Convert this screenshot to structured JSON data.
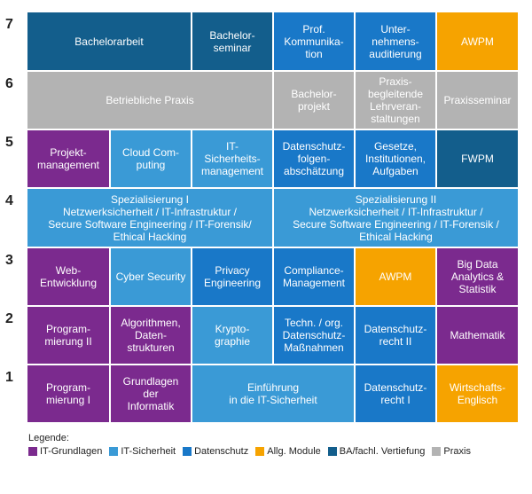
{
  "semesters": [
    "7",
    "6",
    "5",
    "4",
    "3",
    "2",
    "1"
  ],
  "colors": {
    "it": "#7b2a8e",
    "sec": "#3a9ad6",
    "ds": "#1978c8",
    "allg": "#f6a300",
    "ba": "#135e8c",
    "prax": "#b3b3b3"
  },
  "modules": [
    {
      "id": "bachelorarbeit",
      "text": "Bachelorarbeit",
      "cat": "ba"
    },
    {
      "id": "bachelorseminar",
      "text": "Bachelor-\nseminar",
      "cat": "ba"
    },
    {
      "id": "prof-kommunikation",
      "text": "Prof.\nKommunika-\ntion",
      "cat": "ds"
    },
    {
      "id": "unternehmensauditierung",
      "text": "Unter-\nnehmens-\nauditierung",
      "cat": "ds"
    },
    {
      "id": "awpm-7",
      "text": "AWPM",
      "cat": "allg"
    },
    {
      "id": "betriebliche-praxis",
      "text": "Betriebliche Praxis",
      "cat": "prax"
    },
    {
      "id": "bachelorprojekt",
      "text": "Bachelor-\nprojekt",
      "cat": "prax"
    },
    {
      "id": "praxisbegleitende-lehrveranstaltungen",
      "text": "Praxis-\nbegleitende\nLehrveran-\nstaltungen",
      "cat": "prax"
    },
    {
      "id": "praxisseminar",
      "text": "Praxisseminar",
      "cat": "prax"
    },
    {
      "id": "projektmanagement",
      "text": "Projekt-\nmanagement",
      "cat": "it"
    },
    {
      "id": "cloud-computing",
      "text": "Cloud Com-\nputing",
      "cat": "sec"
    },
    {
      "id": "it-sicherheitsmanagement",
      "text": "IT-\nSicherheits-\nmanagement",
      "cat": "sec"
    },
    {
      "id": "datenschutzfolgenabschaetzung",
      "text": "Datenschutz-\nfolgen-\nabschätzung",
      "cat": "ds"
    },
    {
      "id": "gesetze",
      "text": "Gesetze,\nInstitutionen,\nAufgaben",
      "cat": "ds"
    },
    {
      "id": "fwpm",
      "text": "FWPM",
      "cat": "ba"
    },
    {
      "id": "spezialisierung-1",
      "text": "Spezialisierung I\nNetzwerksicherheit / IT-Infrastruktur /\nSecure Software Engineering / IT-Forensik/\nEthical Hacking",
      "cat": "sec"
    },
    {
      "id": "spezialisierung-2",
      "text": "Spezialisierung II\nNetzwerksicherheit / IT-Infrastruktur /\nSecure Software Engineering / IT-Forensik /\nEthical Hacking",
      "cat": "sec"
    },
    {
      "id": "webentwicklung",
      "text": "Web-\nEntwicklung",
      "cat": "it"
    },
    {
      "id": "cyber-security",
      "text": "Cyber Security",
      "cat": "sec"
    },
    {
      "id": "privacy-engineering",
      "text": "Privacy\nEngineering",
      "cat": "ds"
    },
    {
      "id": "compliance-management",
      "text": "Compliance-\nManagement",
      "cat": "ds"
    },
    {
      "id": "awpm-3",
      "text": "AWPM",
      "cat": "allg"
    },
    {
      "id": "big-data",
      "text": "Big Data\nAnalytics &\nStatistik",
      "cat": "it"
    },
    {
      "id": "programmierung-2",
      "text": "Program-\nmierung II",
      "cat": "it"
    },
    {
      "id": "algorithmen",
      "text": "Algorithmen,\nDaten-\nstrukturen",
      "cat": "it"
    },
    {
      "id": "kryptographie",
      "text": "Krypto-\ngraphie",
      "cat": "sec"
    },
    {
      "id": "techn-org-massnahmen",
      "text": "Techn. / org.\nDatenschutz-\nMaßnahmen",
      "cat": "ds"
    },
    {
      "id": "datenschutzrecht-2",
      "text": "Datenschutz-\nrecht II",
      "cat": "ds"
    },
    {
      "id": "mathematik",
      "text": "Mathematik",
      "cat": "it"
    },
    {
      "id": "programmierung-1",
      "text": "Program-\nmierung I",
      "cat": "it"
    },
    {
      "id": "grundlagen-informatik",
      "text": "Grundlagen\nder\nInformatik",
      "cat": "it"
    },
    {
      "id": "einfuehrung-it-sicherheit",
      "text": "Einführung\nin die IT-Sicherheit",
      "cat": "sec"
    },
    {
      "id": "datenschutzrecht-1",
      "text": "Datenschutz-\nrecht I",
      "cat": "ds"
    },
    {
      "id": "wirtschaftsenglisch",
      "text": "Wirtschafts-\nEnglisch",
      "cat": "allg"
    }
  ],
  "legend": {
    "title": "Legende:",
    "items": [
      {
        "cat": "it",
        "label": "IT-Grundlagen"
      },
      {
        "cat": "sec",
        "label": "IT-Sicherheit"
      },
      {
        "cat": "ds",
        "label": "Datenschutz"
      },
      {
        "cat": "allg",
        "label": "Allg. Module"
      },
      {
        "cat": "ba",
        "label": "BA/fachl. Vertiefung"
      },
      {
        "cat": "prax",
        "label": "Praxis"
      }
    ]
  }
}
